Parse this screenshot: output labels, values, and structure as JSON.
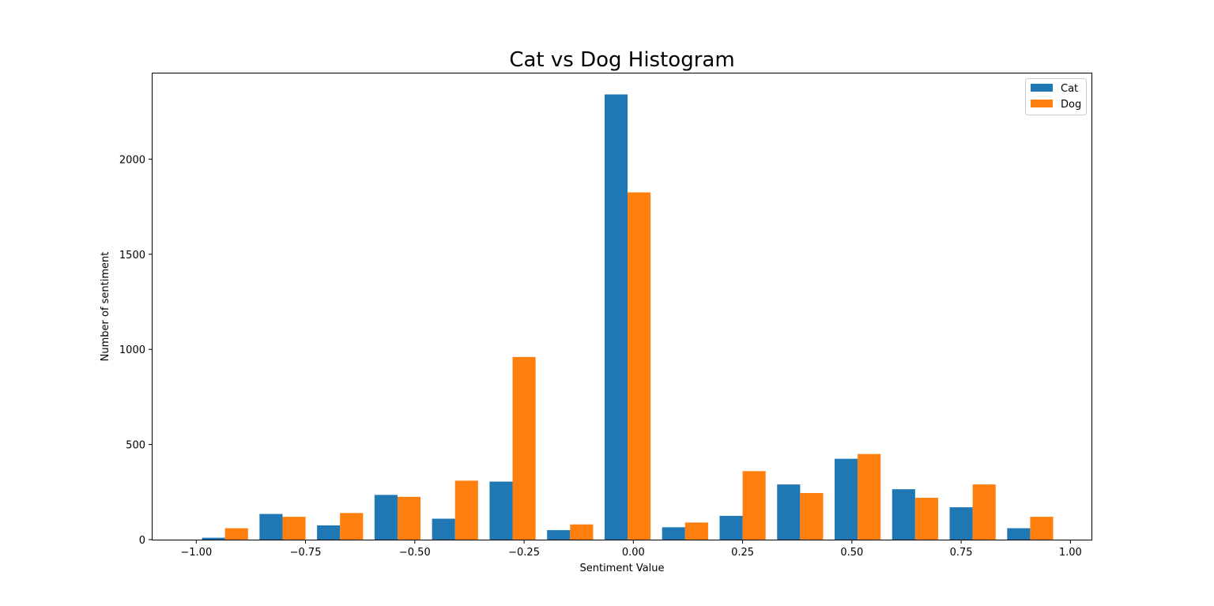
{
  "chart_data": {
    "type": "bar",
    "title": "Cat vs Dog Histogram",
    "xlabel": "Sentiment Value",
    "ylabel": "Number of sentiment",
    "xlim": [
      -1.1,
      1.05
    ],
    "ylim": [
      0,
      2450
    ],
    "x_ticks": [
      -1.0,
      -0.75,
      -0.5,
      -0.25,
      0.0,
      0.25,
      0.5,
      0.75,
      1.0
    ],
    "x_tick_labels": [
      "−1.00",
      "−0.75",
      "−0.50",
      "−0.25",
      "0.00",
      "0.25",
      "0.50",
      "0.75",
      "1.00"
    ],
    "y_ticks": [
      0,
      500,
      1000,
      1500,
      2000
    ],
    "y_tick_labels": [
      "0",
      "500",
      "1000",
      "1500",
      "2000"
    ],
    "bin_edges": [
      -1.0,
      -0.8684,
      -0.7368,
      -0.6053,
      -0.4737,
      -0.3421,
      -0.2105,
      -0.0789,
      0.0526,
      0.1842,
      0.3158,
      0.4474,
      0.5789,
      0.7105,
      0.8421,
      0.9737
    ],
    "grid": false,
    "legend_position": "top-right",
    "series": [
      {
        "name": "Cat",
        "color": "#1f77b4",
        "values": [
          10,
          135,
          75,
          235,
          110,
          305,
          50,
          2340,
          65,
          125,
          290,
          425,
          265,
          170,
          60
        ]
      },
      {
        "name": "Dog",
        "color": "#ff7f0e",
        "values": [
          60,
          120,
          140,
          225,
          310,
          960,
          80,
          1825,
          90,
          360,
          245,
          450,
          220,
          290,
          120
        ]
      }
    ]
  }
}
